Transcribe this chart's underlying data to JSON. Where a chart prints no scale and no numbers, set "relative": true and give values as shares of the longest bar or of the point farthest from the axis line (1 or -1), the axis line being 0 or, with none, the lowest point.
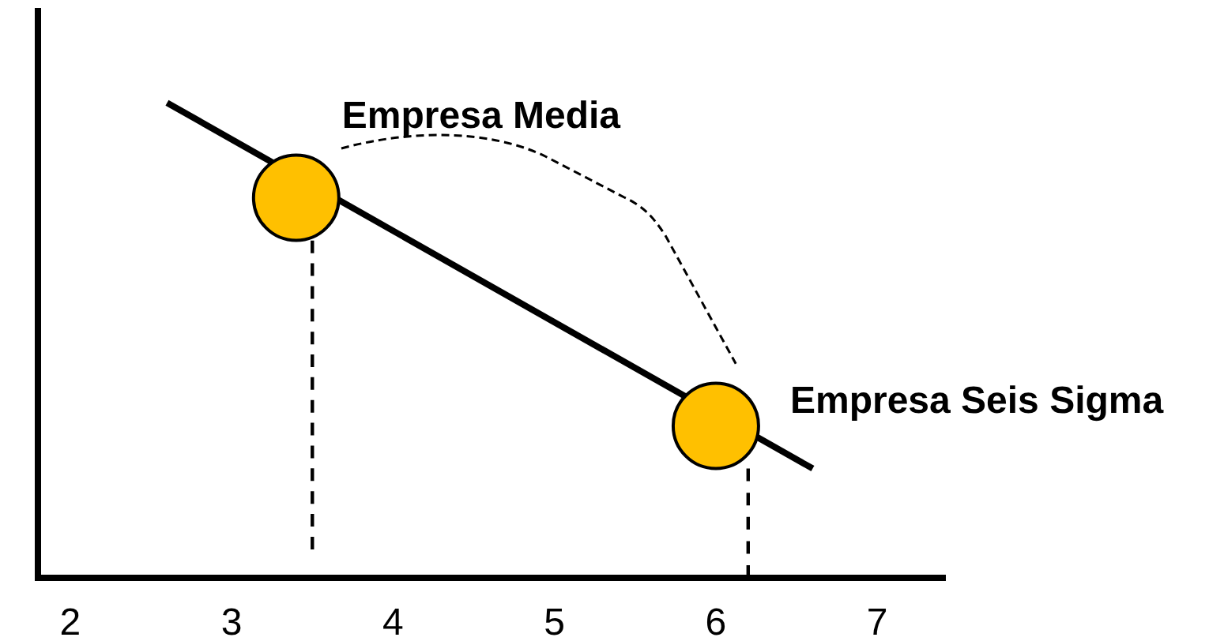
{
  "chart_data": {
    "type": "line",
    "relative": true,
    "xlim": [
      1.8,
      7.42
    ],
    "xticks": [
      2,
      3,
      4,
      5,
      6,
      7
    ],
    "tick_labels": "x",
    "grid": false,
    "legend": false,
    "series": [
      {
        "x": [
          2.6,
          6.6
        ],
        "values": [
          1,
          0.23
        ],
        "color": "#000000",
        "marker": "none",
        "line_style": "solid"
      },
      {
        "x": [
          3.5,
          3.5
        ],
        "values": [
          0.71,
          0.06
        ],
        "color": "#000000",
        "marker": "none",
        "line_style": "dashed"
      },
      {
        "x": [
          6.2,
          6.2
        ],
        "values": [
          0.23,
          0
        ],
        "color": "#000000",
        "marker": "none",
        "line_style": "dashed"
      },
      {
        "type": "scatter",
        "x": [
          3.4,
          6.0
        ],
        "values": [
          0.8,
          0.32
        ],
        "color": "#ffc000",
        "marker": "circle"
      }
    ],
    "annotations": [
      {
        "text": "Empresa Media",
        "x": 3.4,
        "y": 0.8
      },
      {
        "text": "Empresa Seis Sigma",
        "x": 6.0,
        "y": 0.32
      }
    ]
  }
}
